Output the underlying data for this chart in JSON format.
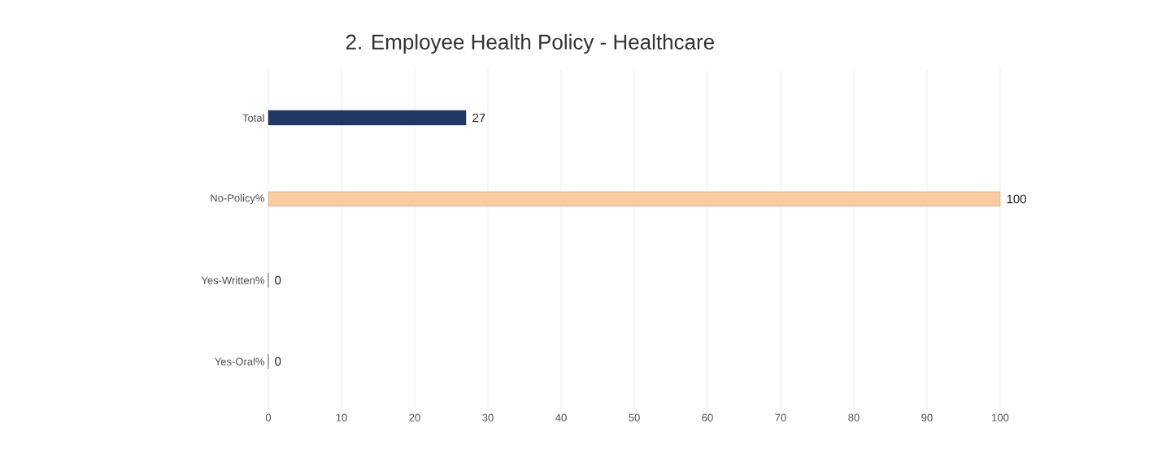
{
  "chart_data": {
    "type": "bar",
    "orientation": "horizontal",
    "title": "2. Employee Health Policy - Healthcare",
    "categories": [
      "Total",
      "No-Policy%",
      "Yes-Written%",
      "Yes-Oral%"
    ],
    "values": [
      27,
      100,
      0,
      0
    ],
    "colors": [
      "#1f3864",
      "#f8cba0",
      "#1f3864",
      "#1f3864"
    ],
    "xlim": [
      0,
      100
    ],
    "xticks": [
      0,
      10,
      20,
      30,
      40,
      50,
      60,
      70,
      80,
      90,
      100
    ],
    "grid": "x",
    "data_labels": true
  }
}
